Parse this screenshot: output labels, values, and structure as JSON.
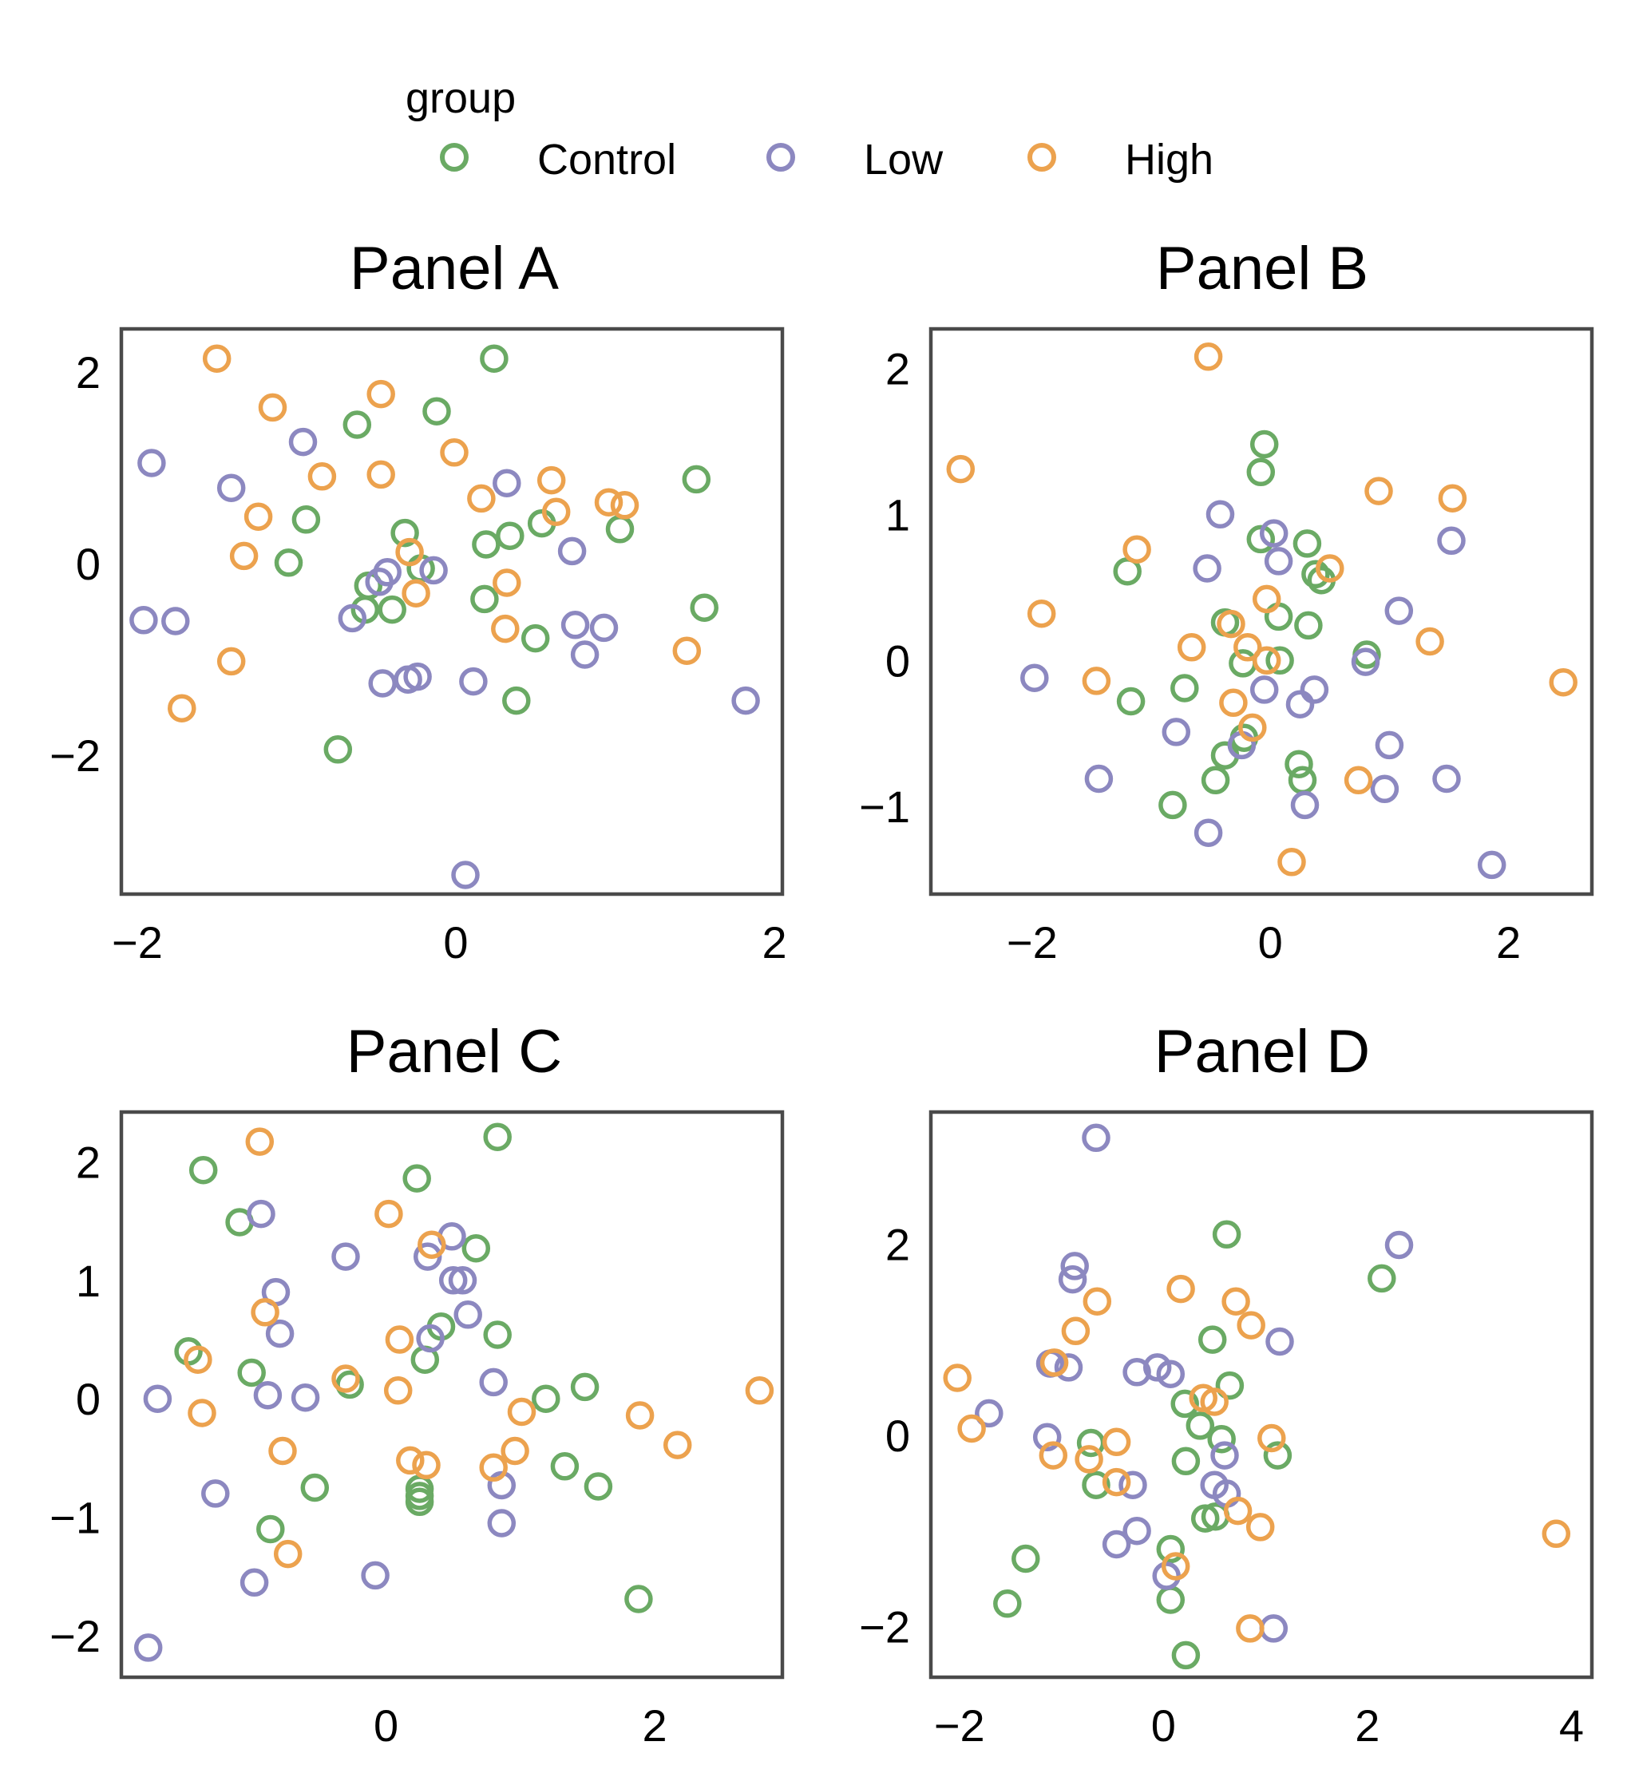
{
  "legend": {
    "title": "group",
    "items": [
      {
        "label": "Control",
        "color": "#6aaa64"
      },
      {
        "label": "Low",
        "color": "#8c88c0"
      },
      {
        "label": "High",
        "color": "#eca24e"
      }
    ]
  },
  "chart_data": [
    {
      "type": "scatter",
      "title": "Panel A",
      "xlim": [
        -2.1,
        2.05
      ],
      "ylim": [
        -3.45,
        2.45
      ],
      "xticks": [
        -2,
        0,
        2
      ],
      "xtick_labels": [
        "−2",
        "0",
        "2"
      ],
      "yticks": [
        -2,
        0,
        2
      ],
      "ytick_labels": [
        "−2",
        "0",
        "2"
      ],
      "series": [
        {
          "name": "Control",
          "points": [
            [
              0.24,
              2.14
            ],
            [
              -0.12,
              1.59
            ],
            [
              -0.62,
              1.45
            ],
            [
              -0.94,
              0.46
            ],
            [
              -1.05,
              0.01
            ],
            [
              -0.32,
              0.32
            ],
            [
              -0.55,
              -0.23
            ],
            [
              -0.57,
              -0.48
            ],
            [
              -0.4,
              -0.48
            ],
            [
              -0.22,
              -0.05
            ],
            [
              0.19,
              0.2
            ],
            [
              0.34,
              0.29
            ],
            [
              0.54,
              0.42
            ],
            [
              1.03,
              0.36
            ],
            [
              1.51,
              0.88
            ],
            [
              1.56,
              -0.46
            ],
            [
              0.5,
              -0.78
            ],
            [
              0.18,
              -0.37
            ],
            [
              0.38,
              -1.43
            ],
            [
              -0.74,
              -1.94
            ]
          ]
        },
        {
          "name": "Low",
          "points": [
            [
              -1.91,
              1.05
            ],
            [
              -0.96,
              1.27
            ],
            [
              -1.41,
              0.79
            ],
            [
              -1.96,
              -0.59
            ],
            [
              -1.76,
              -0.6
            ],
            [
              -0.65,
              -0.57
            ],
            [
              -0.48,
              -0.19
            ],
            [
              -0.43,
              -0.09
            ],
            [
              -0.14,
              -0.07
            ],
            [
              0.32,
              0.84
            ],
            [
              0.73,
              0.13
            ],
            [
              0.75,
              -0.64
            ],
            [
              0.93,
              -0.67
            ],
            [
              0.81,
              -0.95
            ],
            [
              1.82,
              -1.43
            ],
            [
              0.11,
              -1.23
            ],
            [
              -0.24,
              -1.18
            ],
            [
              -0.3,
              -1.21
            ],
            [
              -0.46,
              -1.25
            ],
            [
              0.06,
              -3.25
            ]
          ]
        },
        {
          "name": "High",
          "points": [
            [
              -1.5,
              2.14
            ],
            [
              -1.15,
              1.63
            ],
            [
              -0.47,
              1.77
            ],
            [
              -0.84,
              0.91
            ],
            [
              -0.47,
              0.93
            ],
            [
              -0.01,
              1.16
            ],
            [
              -1.24,
              0.49
            ],
            [
              -1.33,
              0.08
            ],
            [
              0.16,
              0.68
            ],
            [
              0.6,
              0.87
            ],
            [
              0.63,
              0.54
            ],
            [
              0.96,
              0.64
            ],
            [
              1.06,
              0.61
            ],
            [
              0.32,
              -0.2
            ],
            [
              -0.29,
              0.12
            ],
            [
              -0.25,
              -0.31
            ],
            [
              0.31,
              -0.68
            ],
            [
              -1.41,
              -1.02
            ],
            [
              -1.72,
              -1.51
            ],
            [
              1.45,
              -0.91
            ]
          ]
        }
      ]
    },
    {
      "type": "scatter",
      "title": "Panel B",
      "xlim": [
        -2.85,
        2.7
      ],
      "ylim": [
        -1.6,
        2.27
      ],
      "xticks": [
        -2,
        0,
        2
      ],
      "xtick_labels": [
        "−2",
        "0",
        "2"
      ],
      "yticks": [
        -1,
        0,
        1,
        2
      ],
      "ytick_labels": [
        "−1",
        "0",
        "1",
        "2"
      ],
      "series": [
        {
          "name": "Control",
          "points": [
            [
              -0.05,
              1.48
            ],
            [
              -0.08,
              1.29
            ],
            [
              -0.08,
              0.83
            ],
            [
              0.31,
              0.8
            ],
            [
              0.38,
              0.59
            ],
            [
              0.43,
              0.55
            ],
            [
              -1.2,
              0.61
            ],
            [
              -0.38,
              0.26
            ],
            [
              0.07,
              0.3
            ],
            [
              0.32,
              0.24
            ],
            [
              -0.23,
              -0.02
            ],
            [
              0.08,
              0.0
            ],
            [
              0.81,
              0.04
            ],
            [
              -0.72,
              -0.19
            ],
            [
              -1.17,
              -0.28
            ],
            [
              -0.22,
              -0.53
            ],
            [
              -0.38,
              -0.65
            ],
            [
              -0.46,
              -0.82
            ],
            [
              -0.82,
              -0.99
            ],
            [
              0.24,
              -0.71
            ],
            [
              0.27,
              -0.82
            ]
          ]
        },
        {
          "name": "Low",
          "points": [
            [
              -0.42,
              1.0
            ],
            [
              0.03,
              0.87
            ],
            [
              0.07,
              0.68
            ],
            [
              -0.53,
              0.63
            ],
            [
              1.52,
              0.82
            ],
            [
              1.08,
              0.34
            ],
            [
              -1.98,
              -0.12
            ],
            [
              -0.05,
              -0.2
            ],
            [
              0.37,
              -0.2
            ],
            [
              0.25,
              -0.3
            ],
            [
              -0.79,
              -0.49
            ],
            [
              -0.24,
              -0.58
            ],
            [
              0.8,
              -0.01
            ],
            [
              1.0,
              -0.58
            ],
            [
              1.48,
              -0.81
            ],
            [
              -1.44,
              -0.81
            ],
            [
              0.96,
              -0.88
            ],
            [
              0.29,
              -0.99
            ],
            [
              -0.52,
              -1.18
            ],
            [
              1.86,
              -1.4
            ]
          ]
        },
        {
          "name": "High",
          "points": [
            [
              -0.52,
              2.08
            ],
            [
              -2.6,
              1.31
            ],
            [
              0.91,
              1.16
            ],
            [
              1.53,
              1.11
            ],
            [
              -1.12,
              0.76
            ],
            [
              0.5,
              0.63
            ],
            [
              -0.03,
              0.42
            ],
            [
              -1.92,
              0.32
            ],
            [
              -0.33,
              0.25
            ],
            [
              -0.19,
              0.09
            ],
            [
              -0.66,
              0.09
            ],
            [
              -0.03,
              0.0
            ],
            [
              1.34,
              0.13
            ],
            [
              2.46,
              -0.15
            ],
            [
              -1.46,
              -0.14
            ],
            [
              -0.31,
              -0.29
            ],
            [
              -0.15,
              -0.46
            ],
            [
              0.74,
              -0.82
            ],
            [
              0.18,
              -1.38
            ]
          ]
        }
      ]
    },
    {
      "type": "scatter",
      "title": "Panel C",
      "xlim": [
        -1.97,
        2.95
      ],
      "ylim": [
        -2.35,
        2.42
      ],
      "xticks": [
        0,
        2
      ],
      "xtick_labels": [
        "0",
        "2"
      ],
      "yticks": [
        -2,
        -1,
        0,
        1,
        2
      ],
      "ytick_labels": [
        "−2",
        "−1",
        "0",
        "1",
        "2"
      ],
      "series": [
        {
          "name": "Control",
          "points": [
            [
              0.83,
              2.21
            ],
            [
              0.23,
              1.86
            ],
            [
              -1.36,
              1.93
            ],
            [
              -1.09,
              1.49
            ],
            [
              0.67,
              1.27
            ],
            [
              -1.47,
              0.4
            ],
            [
              -1.0,
              0.22
            ],
            [
              -0.27,
              0.12
            ],
            [
              0.41,
              0.61
            ],
            [
              0.29,
              0.33
            ],
            [
              0.83,
              0.54
            ],
            [
              1.19,
              0.0
            ],
            [
              1.48,
              0.1
            ],
            [
              1.33,
              -0.57
            ],
            [
              1.58,
              -0.74
            ],
            [
              -0.53,
              -0.75
            ],
            [
              0.25,
              -0.76
            ],
            [
              0.25,
              -0.82
            ],
            [
              0.25,
              -0.87
            ],
            [
              -0.86,
              -1.1
            ],
            [
              1.88,
              -1.69
            ]
          ]
        },
        {
          "name": "Low",
          "points": [
            [
              -0.93,
              1.56
            ],
            [
              -0.3,
              1.2
            ],
            [
              0.31,
              1.2
            ],
            [
              0.49,
              1.37
            ],
            [
              0.5,
              1.0
            ],
            [
              0.57,
              1.0
            ],
            [
              -0.82,
              0.9
            ],
            [
              0.61,
              0.71
            ],
            [
              -0.79,
              0.55
            ],
            [
              0.33,
              0.51
            ],
            [
              -1.7,
              0.0
            ],
            [
              -0.88,
              0.03
            ],
            [
              -0.6,
              0.01
            ],
            [
              0.8,
              0.14
            ],
            [
              0.86,
              -0.73
            ],
            [
              -1.27,
              -0.8
            ],
            [
              0.86,
              -1.05
            ],
            [
              -0.98,
              -1.55
            ],
            [
              -0.08,
              -1.49
            ],
            [
              -1.77,
              -2.1
            ]
          ]
        },
        {
          "name": "High",
          "points": [
            [
              -0.94,
              2.17
            ],
            [
              0.02,
              1.56
            ],
            [
              0.34,
              1.3
            ],
            [
              -0.9,
              0.73
            ],
            [
              0.1,
              0.5
            ],
            [
              -1.4,
              0.33
            ],
            [
              -0.3,
              0.17
            ],
            [
              0.09,
              0.07
            ],
            [
              -1.37,
              -0.12
            ],
            [
              1.01,
              -0.11
            ],
            [
              1.89,
              -0.14
            ],
            [
              2.78,
              0.07
            ],
            [
              2.17,
              -0.39
            ],
            [
              -0.77,
              -0.44
            ],
            [
              0.18,
              -0.52
            ],
            [
              0.3,
              -0.56
            ],
            [
              0.8,
              -0.58
            ],
            [
              0.96,
              -0.44
            ],
            [
              -0.73,
              -1.31
            ]
          ]
        }
      ]
    },
    {
      "type": "scatter",
      "title": "Panel D",
      "xlim": [
        -2.28,
        4.2
      ],
      "ylim": [
        -2.53,
        3.38
      ],
      "xticks": [
        -2,
        0,
        2,
        4
      ],
      "xtick_labels": [
        "−2",
        "0",
        "2",
        "4"
      ],
      "yticks": [
        -2,
        0,
        2
      ],
      "ytick_labels": [
        "−2",
        "0",
        "2"
      ],
      "series": [
        {
          "name": "Control",
          "points": [
            [
              0.62,
              2.1
            ],
            [
              2.14,
              1.64
            ],
            [
              0.48,
              1.0
            ],
            [
              0.65,
              0.52
            ],
            [
              0.21,
              0.33
            ],
            [
              0.36,
              0.1
            ],
            [
              0.57,
              -0.04
            ],
            [
              -0.71,
              -0.08
            ],
            [
              0.22,
              -0.27
            ],
            [
              1.12,
              -0.21
            ],
            [
              -0.66,
              -0.52
            ],
            [
              0.41,
              -0.87
            ],
            [
              0.51,
              -0.85
            ],
            [
              0.07,
              -1.19
            ],
            [
              -1.35,
              -1.29
            ],
            [
              -1.53,
              -1.76
            ],
            [
              0.07,
              -1.72
            ],
            [
              0.22,
              -2.3
            ]
          ]
        },
        {
          "name": "Low",
          "points": [
            [
              -0.66,
              3.11
            ],
            [
              -0.87,
              1.77
            ],
            [
              -0.89,
              1.63
            ],
            [
              1.14,
              0.98
            ],
            [
              -1.11,
              0.75
            ],
            [
              -0.93,
              0.71
            ],
            [
              -0.26,
              0.66
            ],
            [
              -0.06,
              0.71
            ],
            [
              0.07,
              0.64
            ],
            [
              -1.71,
              0.23
            ],
            [
              -1.14,
              -0.02
            ],
            [
              0.6,
              -0.21
            ],
            [
              0.5,
              -0.52
            ],
            [
              0.62,
              -0.61
            ],
            [
              -0.3,
              -0.52
            ],
            [
              -0.26,
              -1.0
            ],
            [
              -0.46,
              -1.14
            ],
            [
              0.03,
              -1.47
            ],
            [
              1.08,
              -2.02
            ],
            [
              2.31,
              1.99
            ]
          ]
        },
        {
          "name": "High",
          "points": [
            [
              0.17,
              1.53
            ],
            [
              -0.65,
              1.4
            ],
            [
              0.71,
              1.4
            ],
            [
              0.86,
              1.15
            ],
            [
              -0.86,
              1.09
            ],
            [
              -1.07,
              0.76
            ],
            [
              -2.02,
              0.6
            ],
            [
              -1.88,
              0.07
            ],
            [
              0.39,
              0.39
            ],
            [
              0.5,
              0.35
            ],
            [
              1.06,
              -0.03
            ],
            [
              -0.46,
              -0.07
            ],
            [
              -1.08,
              -0.21
            ],
            [
              -0.73,
              -0.25
            ],
            [
              -0.46,
              -0.49
            ],
            [
              0.73,
              -0.79
            ],
            [
              0.95,
              -0.96
            ],
            [
              0.12,
              -1.37
            ],
            [
              0.85,
              -2.02
            ],
            [
              3.85,
              -1.03
            ]
          ]
        }
      ]
    }
  ]
}
